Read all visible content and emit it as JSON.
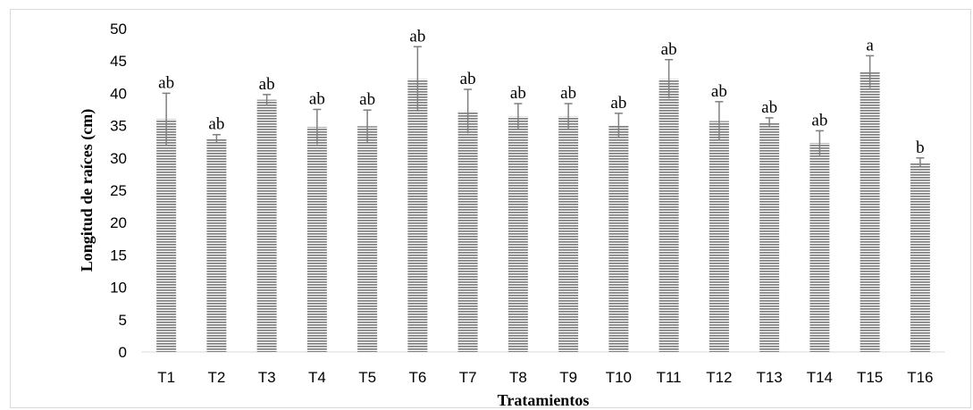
{
  "chart_data": {
    "type": "bar",
    "title": "",
    "xlabel": "Tratamientos",
    "ylabel": "Longitud de raíces (cm)",
    "ylim": [
      0,
      50
    ],
    "yticks": [
      0,
      5,
      10,
      15,
      20,
      25,
      30,
      35,
      40,
      45,
      50
    ],
    "categories": [
      "T1",
      "T2",
      "T3",
      "T4",
      "T5",
      "T6",
      "T7",
      "T8",
      "T9",
      "T10",
      "T11",
      "T12",
      "T13",
      "T14",
      "T15",
      "T16"
    ],
    "values": [
      36.0,
      33.0,
      39.0,
      34.8,
      34.9,
      42.2,
      37.2,
      36.4,
      36.4,
      35.0,
      42.2,
      35.7,
      35.5,
      32.3,
      43.3,
      29.3
    ],
    "error": [
      4.0,
      0.6,
      0.8,
      2.7,
      2.5,
      5.0,
      3.4,
      2.0,
      2.0,
      1.9,
      3.0,
      3.0,
      0.7,
      1.9,
      2.5,
      0.7
    ],
    "significance": [
      "ab",
      "ab",
      "ab",
      "ab",
      "ab",
      "ab",
      "ab",
      "ab",
      "ab",
      "ab",
      "ab",
      "ab",
      "ab",
      "ab",
      "a",
      "b"
    ],
    "grid": false,
    "legend": "none",
    "bar_color": "#7f7f7f",
    "bar_pattern": "horizontal-stripes",
    "error_bar_color": "#7f7f7f"
  }
}
